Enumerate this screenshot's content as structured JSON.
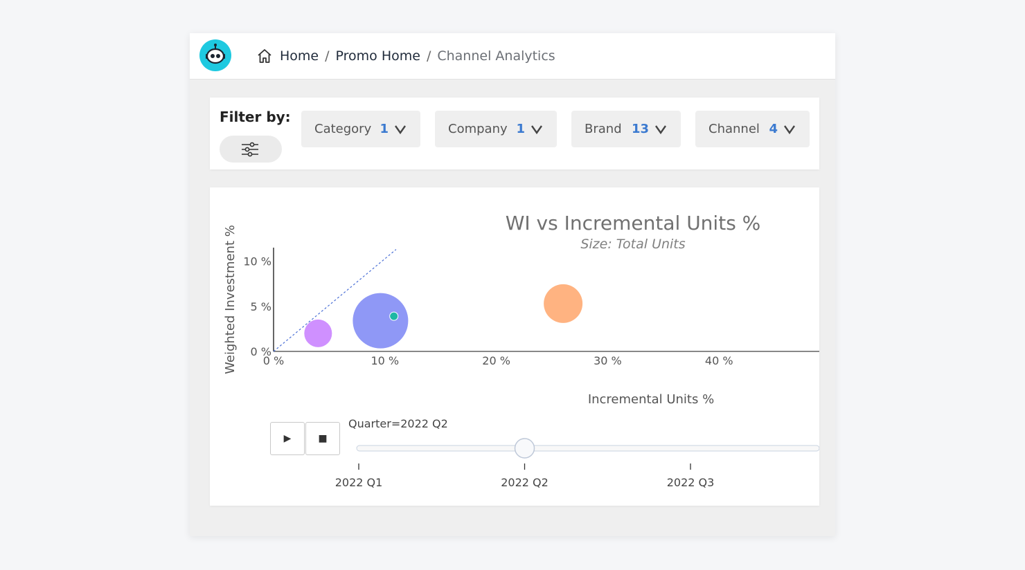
{
  "breadcrumb": {
    "items": [
      "Home",
      "Promo Home",
      "Channel Analytics"
    ]
  },
  "filters": {
    "label": "Filter by:",
    "dropdowns": [
      {
        "label": "Category",
        "count": "1"
      },
      {
        "label": "Company",
        "count": "1"
      },
      {
        "label": "Brand",
        "count": "13"
      },
      {
        "label": "Channel",
        "count": "4"
      }
    ]
  },
  "colors": {
    "accent": "#3b7ad0",
    "logo": "#1ec9e0"
  },
  "chart_data": {
    "type": "scatter",
    "title": "WI vs Incremental Units %",
    "subtitle": "Size: Total Units",
    "xlabel": "Incremental Units %",
    "ylabel": "Weighted Investment %",
    "xlim": [
      0,
      49
    ],
    "ylim": [
      0,
      11.5
    ],
    "x_ticks": [
      0,
      10,
      20,
      30,
      40
    ],
    "x_tick_labels": [
      "0 %",
      "10 %",
      "20 %",
      "30 %",
      "40 %"
    ],
    "y_ticks": [
      0,
      5,
      10
    ],
    "y_tick_labels": [
      "0 %",
      "5 %",
      "10 %"
    ],
    "reference_line": {
      "from": [
        0,
        0
      ],
      "to": [
        11,
        11.3
      ]
    },
    "points": [
      {
        "x": 4.0,
        "y": 2.0,
        "size": 20,
        "color": "#c77dff"
      },
      {
        "x": 9.6,
        "y": 3.4,
        "size": 40,
        "color": "#7b86f5"
      },
      {
        "x": 10.8,
        "y": 3.9,
        "size": 6,
        "color": "#1fb7a4"
      },
      {
        "x": 26.0,
        "y": 5.3,
        "size": 28,
        "color": "#ffa66b"
      }
    ],
    "slider": {
      "current_label": "Quarter=2022 Q2",
      "steps": [
        "2022 Q1",
        "2022 Q2",
        "2022 Q3"
      ],
      "current_index": 1
    }
  },
  "controls": {
    "play": "▶",
    "stop": "■"
  }
}
